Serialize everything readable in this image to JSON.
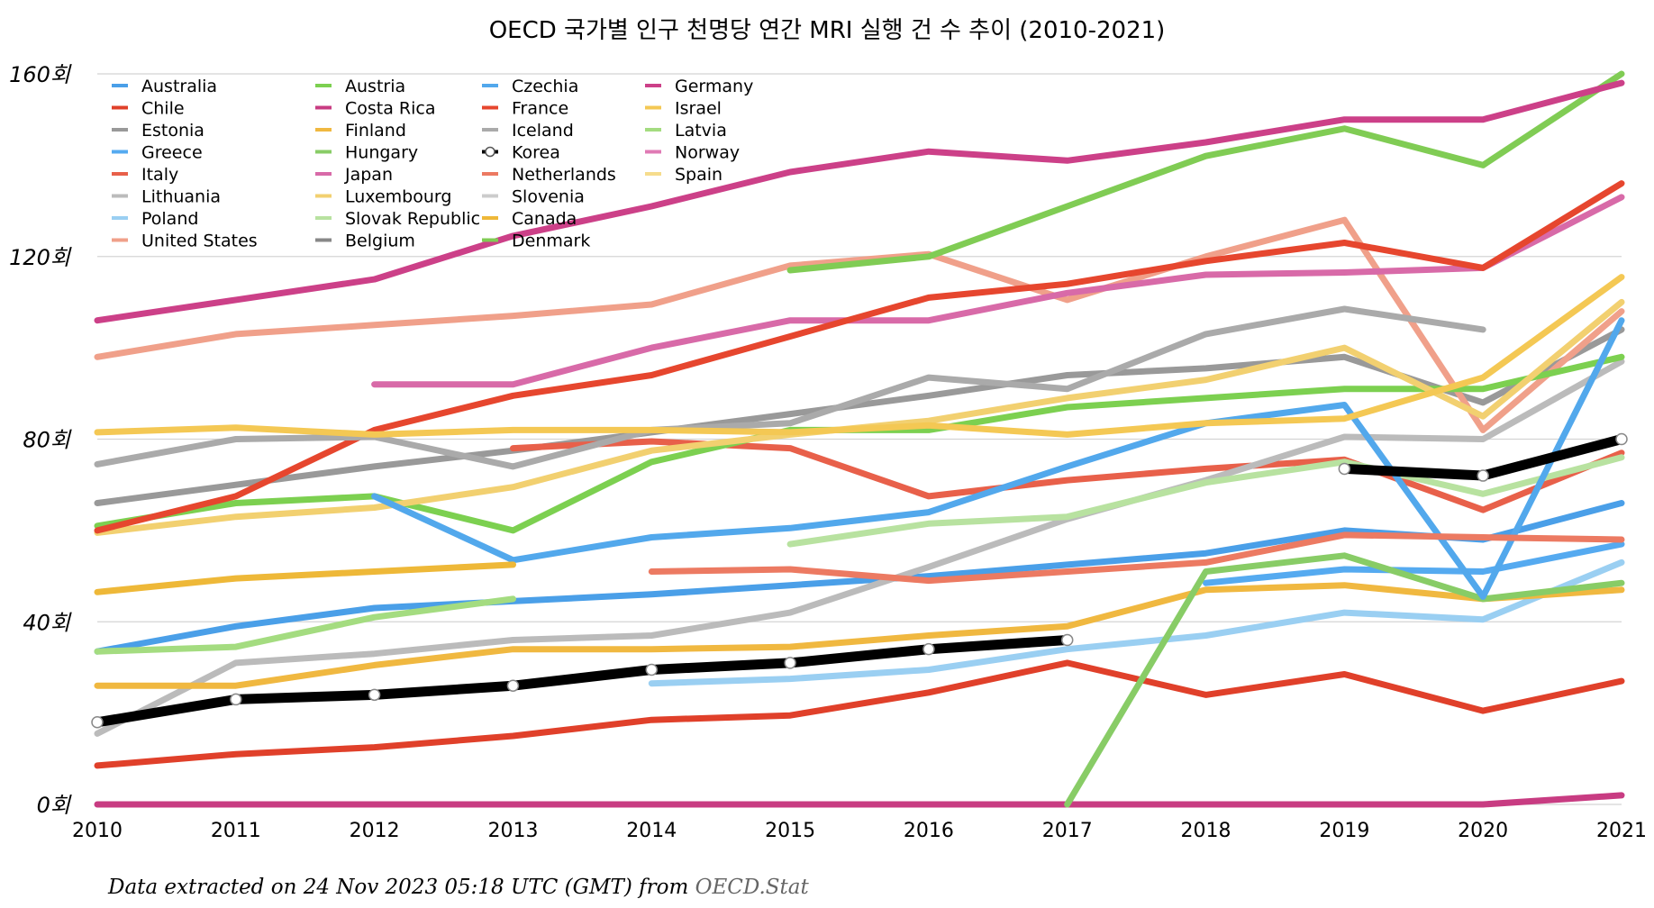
{
  "chart_data": {
    "type": "line",
    "title": "OECD 국가별 인구 천명당 연간 MRI 실행 건 수 추이 (2010-2021)",
    "xlabel": "",
    "ylabel": "",
    "x": [
      "2010",
      "2011",
      "2012",
      "2013",
      "2014",
      "2015",
      "2016",
      "2017",
      "2018",
      "2019",
      "2020",
      "2021"
    ],
    "ylim": [
      0,
      160
    ],
    "yticks": [
      0,
      40,
      80,
      120,
      160
    ],
    "ytick_labels": [
      "0회",
      "40회",
      "80회",
      "120회",
      "160회"
    ],
    "grid": true,
    "legend_position": "top-left",
    "footer": {
      "prefix": "Data extracted on 24 Nov 2023 05:18 UTC (GMT) from",
      "source": "OECD.Stat"
    },
    "series": [
      {
        "name": "Australia",
        "color": "#4a9fe8",
        "values": [
          33.5,
          39,
          43,
          44.5,
          46,
          48,
          50,
          52.5,
          55,
          60,
          58,
          66
        ]
      },
      {
        "name": "Chile",
        "color": "#e0402a",
        "values": [
          8.5,
          11,
          12.5,
          15,
          18.5,
          19.5,
          24.5,
          31,
          24,
          28.5,
          20.5,
          27
        ]
      },
      {
        "name": "Estonia",
        "color": "#999999",
        "values": [
          66,
          70,
          74,
          77.5,
          81.5,
          85.5,
          89.5,
          94,
          95.5,
          98,
          88,
          104
        ]
      },
      {
        "name": "Greece",
        "color": "#55aaf0",
        "values": [
          null,
          null,
          null,
          null,
          null,
          null,
          null,
          null,
          48.5,
          51.5,
          51,
          57
        ]
      },
      {
        "name": "Italy",
        "color": "#e8604a",
        "values": [
          null,
          null,
          null,
          78,
          79.5,
          78,
          67.5,
          71,
          73.5,
          75.5,
          64.5,
          77
        ]
      },
      {
        "name": "Lithuania",
        "color": "#bbbbbb",
        "values": [
          15.5,
          31,
          33,
          36,
          37,
          42,
          52,
          62.5,
          71,
          80.5,
          80,
          97
        ]
      },
      {
        "name": "Poland",
        "color": "#9acff2",
        "values": [
          null,
          null,
          null,
          null,
          26.5,
          27.5,
          29.5,
          34,
          37,
          42,
          40.5,
          53
        ]
      },
      {
        "name": "United States",
        "color": "#f0a08a",
        "values": [
          98,
          103,
          105,
          107,
          109.5,
          118,
          120.5,
          110.5,
          120,
          128,
          82,
          108
        ]
      },
      {
        "name": "Austria",
        "color": "#7cd050",
        "values": [
          61,
          66,
          67.5,
          60,
          75,
          82,
          82,
          87,
          89,
          91,
          91,
          98
        ]
      },
      {
        "name": "Costa Rica",
        "color": "#c83c82",
        "values": [
          0,
          0,
          0,
          0,
          0,
          0,
          0,
          0,
          0,
          0,
          0,
          2
        ]
      },
      {
        "name": "Finland",
        "color": "#f0b840",
        "values": [
          26,
          26,
          30.5,
          34,
          34,
          34.5,
          37,
          39,
          47,
          48,
          45,
          47
        ]
      },
      {
        "name": "Hungary",
        "color": "#88cc66",
        "values": [
          null,
          null,
          null,
          null,
          null,
          null,
          null,
          0,
          51,
          54.5,
          45,
          48.5
        ]
      },
      {
        "name": "Japan",
        "color": "#d86aa8",
        "values": [
          null,
          null,
          92,
          92,
          100,
          106,
          106,
          112,
          116,
          116.5,
          117.5,
          133
        ]
      },
      {
        "name": "Luxembourg",
        "color": "#f2d070",
        "values": [
          59.5,
          63,
          65,
          69.5,
          77.5,
          81,
          84,
          89,
          93,
          100,
          85,
          110
        ]
      },
      {
        "name": "Slovak Republic",
        "color": "#b8e2a0",
        "values": [
          null,
          null,
          null,
          null,
          null,
          57,
          61.5,
          63,
          70.5,
          75,
          68,
          76
        ]
      },
      {
        "name": "Belgium",
        "color": "#888888",
        "values": [
          null,
          null,
          null,
          null,
          null,
          null,
          null,
          null,
          null,
          null,
          null,
          null
        ]
      },
      {
        "name": "Czechia",
        "color": "#52a8ec",
        "values": [
          null,
          null,
          67.5,
          53.5,
          58.5,
          60.5,
          64,
          74,
          83.5,
          87.5,
          45.5,
          106
        ]
      },
      {
        "name": "France",
        "color": "#e6462e",
        "values": [
          60,
          67.5,
          82,
          89.5,
          94,
          102.5,
          111,
          114,
          119,
          123,
          117.5,
          136
        ]
      },
      {
        "name": "Iceland",
        "color": "#aaaaaa",
        "values": [
          74.5,
          80,
          80.5,
          74,
          82,
          83.5,
          93.5,
          91,
          103,
          108.5,
          104,
          null
        ]
      },
      {
        "name": "Korea",
        "color": "#000000",
        "marker": true,
        "values": [
          18,
          23,
          24,
          26,
          29.5,
          31,
          34,
          36,
          null,
          73.5,
          72,
          80
        ]
      },
      {
        "name": "Netherlands",
        "color": "#ec7a62",
        "values": [
          null,
          null,
          null,
          null,
          51,
          51.5,
          49,
          51,
          53,
          59,
          58.5,
          58
        ]
      },
      {
        "name": "Slovenia",
        "color": "#cccccc",
        "values": [
          null,
          null,
          null,
          null,
          null,
          null,
          null,
          null,
          null,
          null,
          null,
          null
        ]
      },
      {
        "name": "Canada",
        "color": "#eeb838",
        "values": [
          46.5,
          49.5,
          51,
          52.5,
          null,
          null,
          null,
          null,
          null,
          null,
          null,
          null
        ]
      },
      {
        "name": "Denmark",
        "color": "#80cc54",
        "values": [
          null,
          null,
          null,
          null,
          null,
          117,
          120,
          131,
          142,
          148,
          140,
          160
        ]
      },
      {
        "name": "Germany",
        "color": "#cc4088",
        "values": [
          106,
          110.5,
          115,
          124.5,
          131,
          138.5,
          143,
          141,
          145,
          150,
          150,
          158
        ]
      },
      {
        "name": "Israel",
        "color": "#f4c854",
        "values": [
          81.5,
          82.5,
          81,
          82,
          82,
          81.5,
          83,
          81,
          83.5,
          84.5,
          93.5,
          115.5
        ]
      },
      {
        "name": "Latvia",
        "color": "#a4dc80",
        "values": [
          33.5,
          34.5,
          41,
          45,
          null,
          null,
          null,
          null,
          null,
          null,
          null,
          null
        ]
      },
      {
        "name": "Norway",
        "color": "#e07ab4",
        "values": [
          null,
          null,
          null,
          null,
          null,
          null,
          null,
          null,
          null,
          null,
          null,
          null
        ]
      },
      {
        "name": "Spain",
        "color": "#f6dc8c",
        "values": [
          null,
          null,
          null,
          null,
          null,
          null,
          null,
          null,
          null,
          null,
          null,
          null
        ]
      }
    ]
  }
}
